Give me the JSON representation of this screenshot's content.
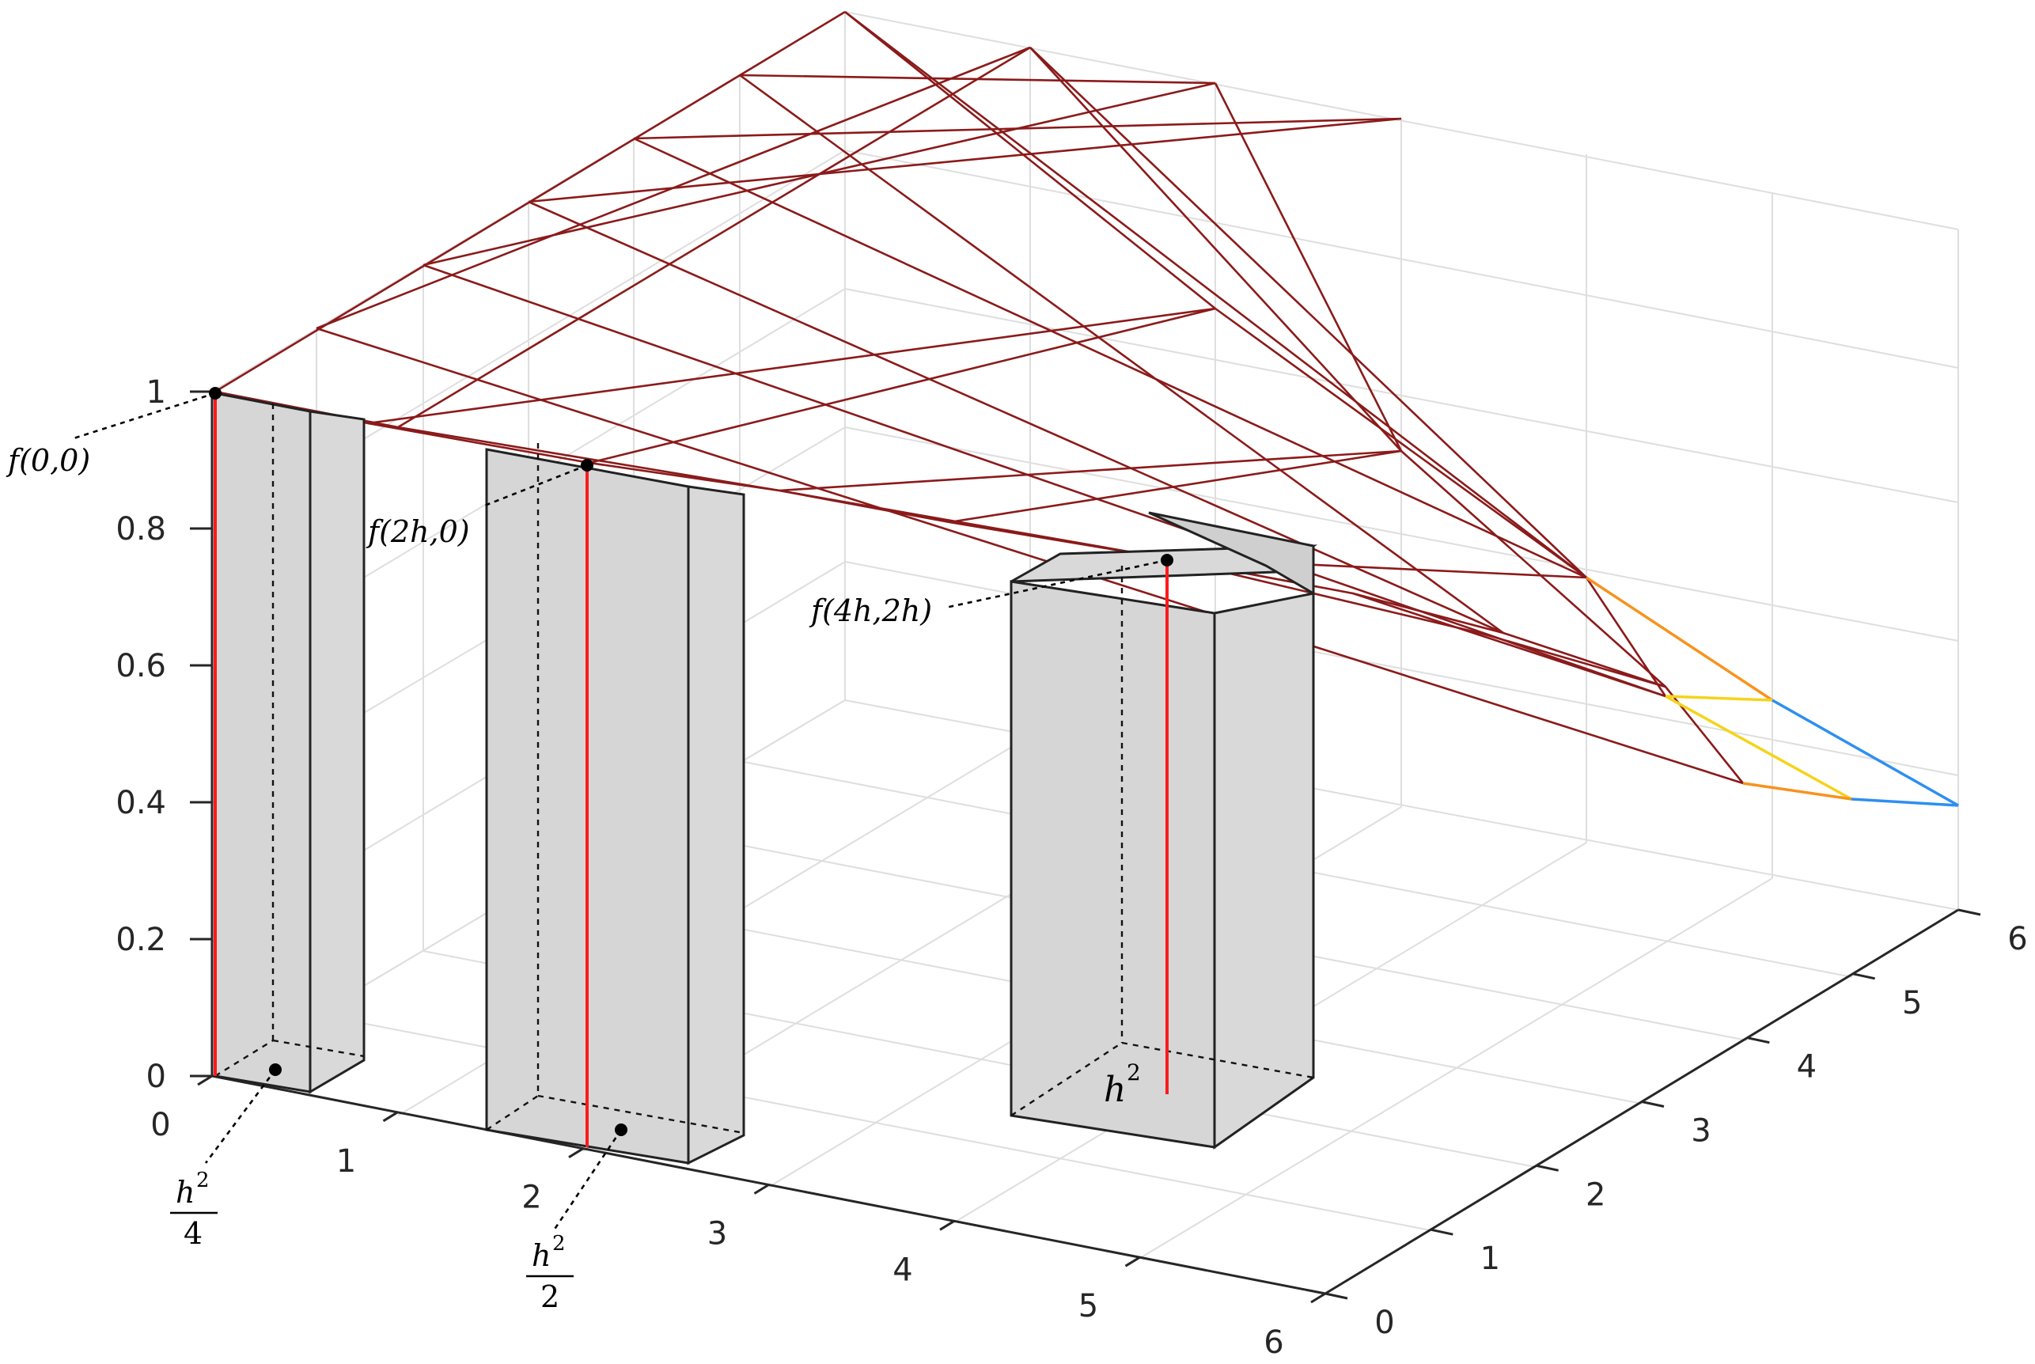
{
  "chart_data": {
    "type": "surface",
    "x_ticks": [
      "0",
      "1",
      "2",
      "3",
      "4",
      "5",
      "6"
    ],
    "y_ticks": [
      "0",
      "1",
      "2",
      "3",
      "4",
      "5",
      "6"
    ],
    "z_ticks": [
      "0",
      "0.2",
      "0.4",
      "0.6",
      "0.8",
      "1"
    ],
    "zlim": [
      0,
      1
    ],
    "grid": true,
    "annotations": {
      "f00": "f(0,0)",
      "f2h0": "f(2h,0)",
      "f4h2h": "f(4h,2h)",
      "h2_over_4_num": "h",
      "h2_over_4_den": "4",
      "h2_over_2_num": "h",
      "h2_over_2_den": "2",
      "h2": "h",
      "sup": "2"
    }
  }
}
